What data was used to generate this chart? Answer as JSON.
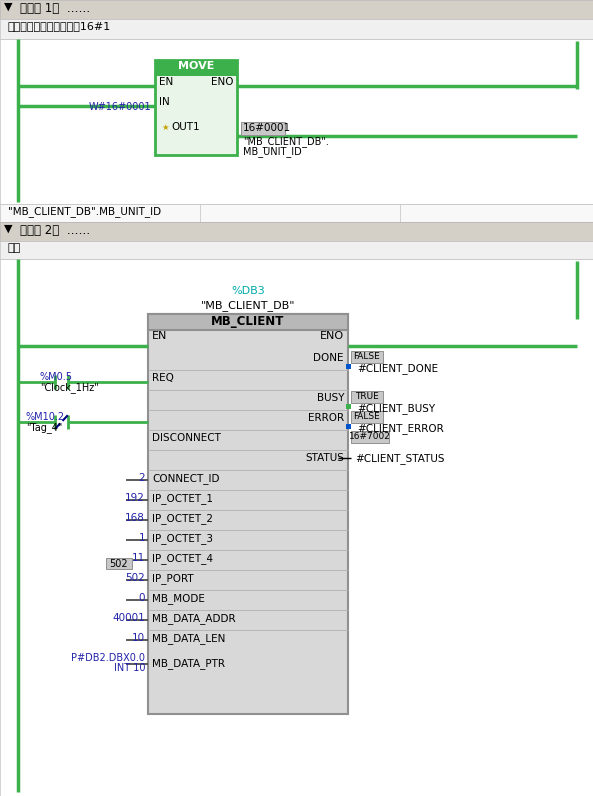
{
  "bg_color": "#ffffff",
  "header_bg": "#d4d0c8",
  "white_area": "#f8f8f8",
  "block_bg": "#d8d8d8",
  "block_title_bg": "#b8b8b8",
  "block_border": "#909090",
  "rail_color": "#3cb04a",
  "text_color": "#000000",
  "blue_text": "#2222aa",
  "cyan_text": "#00aaaa",
  "label_bg": "#c8c8c8",
  "seg1_title": "程序段 1：  ……",
  "seg1_comment": "设置通讯伙伴从站地址为16#1",
  "seg2_title": "程序段 2：  ……",
  "seg2_comment": "注释",
  "move_block_title": "MOVE",
  "move_in_label": "W#16#0001",
  "move_out_top": "16#0001",
  "move_out_line1": "\"MB_CLIENT_DB\".",
  "move_out_line2": "MB_UNIT_ID",
  "bottom_label": "\"MB_CLIENT_DB\".MB_UNIT_ID",
  "db3_label": "%DB3",
  "db3_name": "\"MB_CLIENT_DB\"",
  "mb_block_title": "MB_CLIENT",
  "clock_label1": "%M0.5",
  "clock_label2": "\"Clock_1Hz\"",
  "tag4_label1": "%M10.2",
  "tag4_label2": "\"Tag_4\"",
  "left_inputs": [
    {
      "val": "2",
      "pin": "CONNECT_ID"
    },
    {
      "val": "192",
      "pin": "IP_OCTET_1"
    },
    {
      "val": "168",
      "pin": "IP_OCTET_2"
    },
    {
      "val": "1",
      "pin": "IP_OCTET_3"
    },
    {
      "val": "11",
      "pin": "IP_OCTET_4"
    },
    {
      "val": "502",
      "pin": "IP_PORT"
    },
    {
      "val": "0",
      "pin": "MB_MODE"
    },
    {
      "val": "40001",
      "pin": "MB_DATA_ADDR"
    },
    {
      "val": "10",
      "pin": "MB_DATA_LEN"
    }
  ],
  "mb_data_ptr_val1": "P#DB2.DBX0.0",
  "mb_data_ptr_val2": "INT 10",
  "mb_data_ptr_pin": "MB_DATA_PTR",
  "right_outputs": [
    {
      "label": "FALSE",
      "pin": "DONE",
      "var": "#CLIENT_DONE"
    },
    {
      "label": "TRUE",
      "pin": "BUSY",
      "var": "#CLIENT_BUSY"
    },
    {
      "label": "FALSE",
      "pin": "ERROR",
      "var": "#CLIENT_ERROR"
    }
  ],
  "status_label": "16#7002",
  "status_pin": "STATUS",
  "status_var": "#CLIENT_STATUS",
  "port_502_badge": "502",
  "disconnect_pin": "DISCONNECT"
}
